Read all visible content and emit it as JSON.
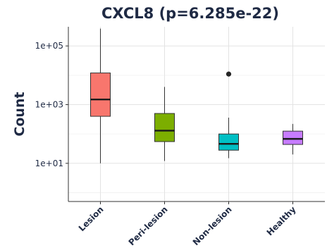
{
  "chart_data": {
    "type": "boxplot",
    "title": "CXCL8 (p=6.285e-22)",
    "ylabel": "Count",
    "xlabel": "",
    "yscale": "log10",
    "ylim": [
      0.5,
      450000
    ],
    "yticks": [
      10,
      1000,
      100000
    ],
    "ytick_labels": [
      "1e+01",
      "1e+03",
      "1e+05"
    ],
    "grid": true,
    "legend": "none",
    "categories": [
      "Lesion",
      "Peri-lesion",
      "Non-lesion",
      "Healthy"
    ],
    "boxes": [
      {
        "category": "Lesion",
        "whisker_low": 10,
        "q1": 400,
        "median": 1500,
        "q3": 12000,
        "whisker_high": 390000,
        "outliers": [],
        "color": "#f8766d"
      },
      {
        "category": "Peri-lesion",
        "whisker_low": 12,
        "q1": 55,
        "median": 130,
        "q3": 500,
        "whisker_high": 4000,
        "outliers": [],
        "color": "#7cae00"
      },
      {
        "category": "Non-lesion",
        "whisker_low": 15,
        "q1": 28,
        "median": 46,
        "q3": 100,
        "whisker_high": 360,
        "outliers": [
          11000
        ],
        "color": "#00bfc4"
      },
      {
        "category": "Healthy",
        "whisker_low": 20,
        "q1": 44,
        "median": 68,
        "q3": 125,
        "whisker_high": 220,
        "outliers": [],
        "color": "#c77cff"
      }
    ]
  }
}
